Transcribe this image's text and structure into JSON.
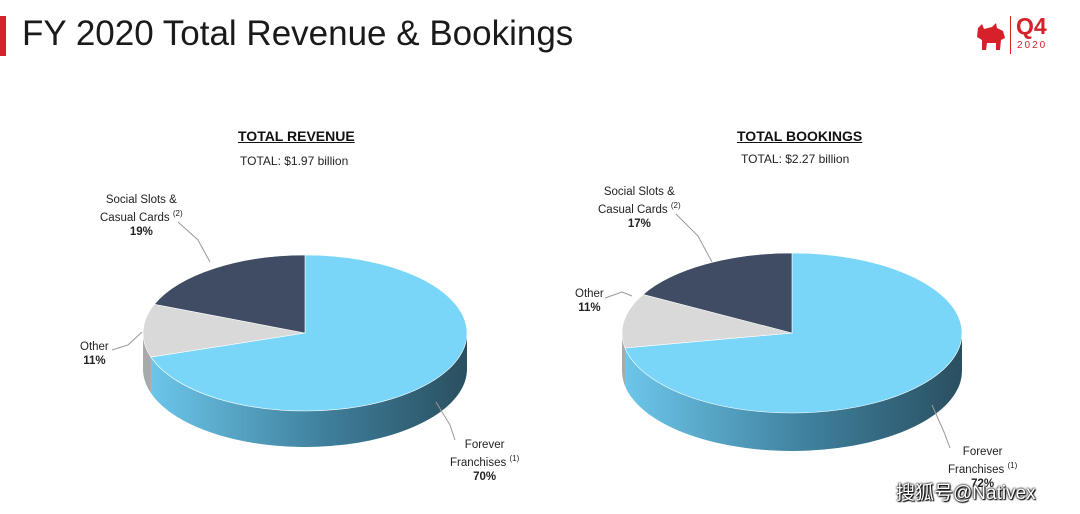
{
  "page_title": "FY 2020 Total Revenue & Bookings",
  "logo": {
    "quarter": "Q4",
    "year": "2020",
    "brand_color": "#d6202a"
  },
  "chart_data": [
    {
      "type": "pie",
      "title": "TOTAL REVENUE",
      "subtitle": "TOTAL: $1.97 billion",
      "slices": [
        {
          "name": "Forever Franchises",
          "line2": "Franchises",
          "line1": "Forever",
          "note": "(1)",
          "value": 70,
          "label": "70%",
          "color": "#7ad6f8"
        },
        {
          "name": "Other",
          "line1": "Other",
          "note": "",
          "value": 11,
          "label": "11%",
          "color": "#d9d9d9"
        },
        {
          "name": "Social Slots & Casual Cards",
          "line1": "Social Slots &",
          "line2": "Casual Cards",
          "note": "(2)",
          "value": 19,
          "label": "19%",
          "color": "#3f4c63"
        }
      ]
    },
    {
      "type": "pie",
      "title": "TOTAL BOOKINGS",
      "subtitle": "TOTAL: $2.27 billion",
      "slices": [
        {
          "name": "Forever Franchises",
          "line1": "Forever",
          "line2": "Franchises",
          "note": "(1)",
          "value": 72,
          "label": "72%",
          "color": "#7ad6f8"
        },
        {
          "name": "Other",
          "line1": "Other",
          "note": "",
          "value": 11,
          "label": "11%",
          "color": "#d9d9d9"
        },
        {
          "name": "Social Slots & Casual Cards",
          "line1": "Social Slots &",
          "line2": "Casual Cards",
          "note": "(2)",
          "value": 17,
          "label": "17%",
          "color": "#3f4c63"
        }
      ]
    }
  ],
  "watermark": "搜狐号@Nativex"
}
